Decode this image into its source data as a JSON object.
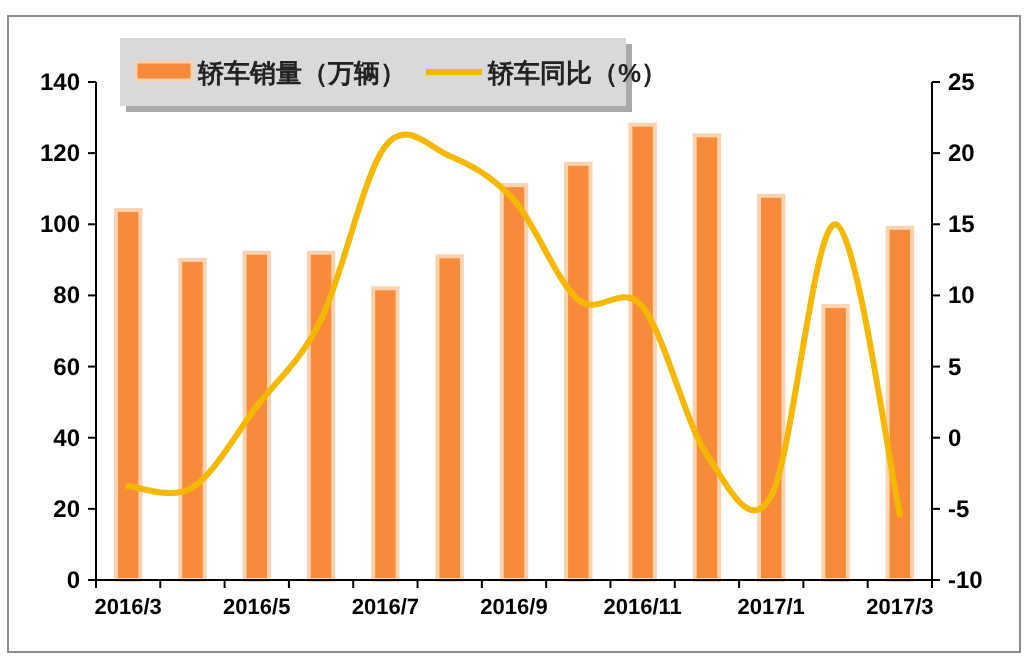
{
  "chart_data": {
    "type": "bar",
    "categories": [
      "2016/3",
      null,
      "2016/5",
      null,
      "2016/7",
      null,
      "2016/9",
      null,
      "2016/11",
      null,
      "2017/1",
      null,
      "2017/3"
    ],
    "series": [
      {
        "name": "轿车销量（万辆）",
        "color": "#f68b3a",
        "values": [
          104,
          90,
          92,
          92,
          82,
          91,
          111,
          117,
          128,
          125,
          108,
          77,
          99
        ]
      },
      {
        "name": "轿车同比（%）",
        "type": "line",
        "axis": "y2",
        "color": "#f5b800",
        "values": [
          -3.4,
          -3.5,
          2.2,
          8.3,
          20.5,
          19.8,
          16.7,
          9.7,
          9.2,
          -1.2,
          -4.1,
          15,
          -5.4
        ]
      }
    ],
    "ylim": [
      0,
      140
    ],
    "yticks": [
      0,
      20,
      40,
      60,
      80,
      100,
      120,
      140
    ],
    "y2lim": [
      -10,
      25
    ],
    "y2ticks": [
      -10,
      -5,
      0,
      5,
      10,
      15,
      20,
      25
    ],
    "legend": "top left",
    "grid": false
  }
}
